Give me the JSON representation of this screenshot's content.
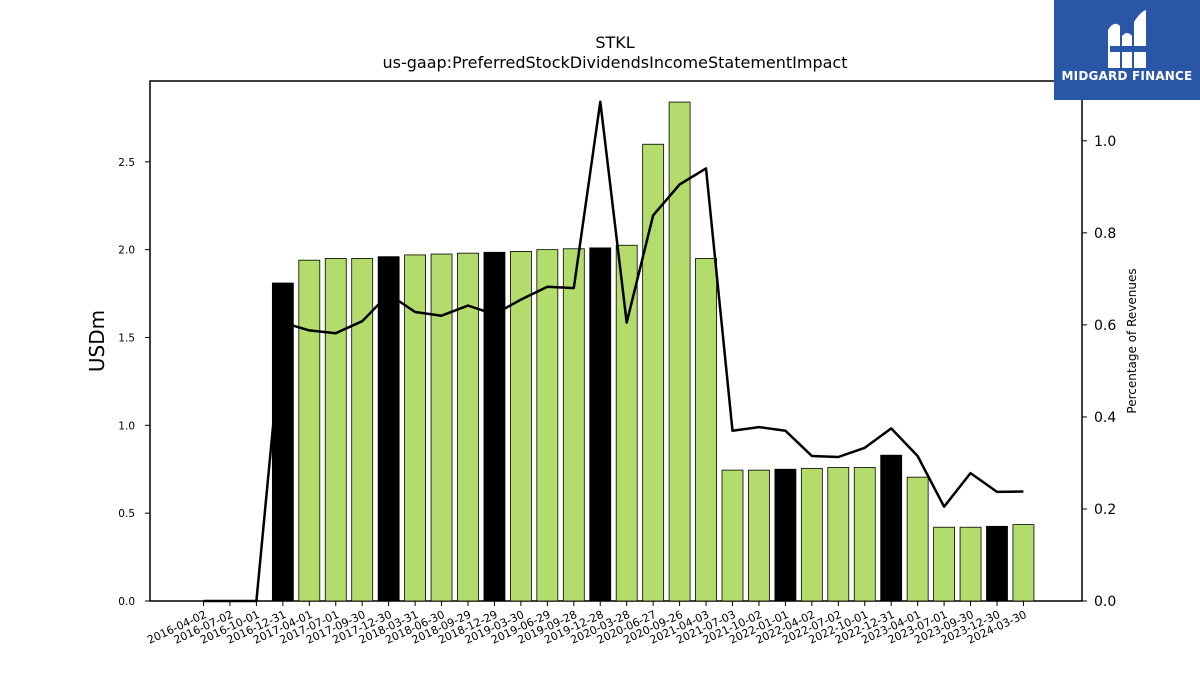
{
  "logo": {
    "text": "MIDGARD FINANCE"
  },
  "chart_data": {
    "type": "bar",
    "title": "STKL",
    "subtitle": "us-gaap:PreferredStockDividendsIncomeStatementImpact",
    "ylabel": "USDm",
    "y2label": "Percentage of Revenues",
    "ylim": [
      0,
      2.96
    ],
    "y2lim": [
      0,
      1.13
    ],
    "yticks": [
      "0.0",
      "0.5",
      "1.0",
      "1.5",
      "2.0",
      "2.5"
    ],
    "y2ticks": [
      "0.0",
      "0.2",
      "0.4",
      "0.6",
      "0.8",
      "1.0"
    ],
    "categories": [
      "2016-04-02",
      "2016-07-02",
      "2016-10-01",
      "2016-12-31",
      "2017-04-01",
      "2017-07-01",
      "2017-09-30",
      "2017-12-30",
      "2018-03-31",
      "2018-06-30",
      "2018-09-29",
      "2018-12-29",
      "2019-03-30",
      "2019-06-29",
      "2019-09-28",
      "2019-12-28",
      "2020-03-28",
      "2020-06-27",
      "2020-09-26",
      "2021-04-03",
      "2021-07-03",
      "2021-10-02",
      "2022-01-01",
      "2022-04-02",
      "2022-07-02",
      "2022-10-01",
      "2022-12-31",
      "2023-04-01",
      "2023-07-01",
      "2023-09-30",
      "2023-12-30",
      "2024-03-30"
    ],
    "series": [
      {
        "type": "bar",
        "values": [
          0,
          0,
          0,
          1.81,
          1.94,
          1.95,
          1.95,
          1.96,
          1.97,
          1.975,
          1.98,
          1.985,
          1.99,
          2.0,
          2.005,
          2.01,
          2.025,
          2.6,
          2.84,
          1.95,
          0.745,
          0.745,
          0.75,
          0.755,
          0.76,
          0.76,
          0.83,
          0.705,
          0.42,
          0.42,
          0.425,
          0.435
        ],
        "highlight": [
          false,
          false,
          false,
          true,
          false,
          false,
          false,
          true,
          false,
          false,
          false,
          true,
          false,
          false,
          false,
          true,
          false,
          false,
          false,
          false,
          false,
          false,
          true,
          false,
          false,
          false,
          true,
          false,
          false,
          false,
          true,
          false
        ],
        "colors": {
          "normal": "#b3dc6c",
          "highlight": "#000000"
        }
      },
      {
        "type": "line",
        "axis": "right",
        "values": [
          0,
          0,
          0,
          0.605,
          0.588,
          0.582,
          0.608,
          0.667,
          0.628,
          0.62,
          0.642,
          0.623,
          0.655,
          0.683,
          0.68,
          1.085,
          0.605,
          0.838,
          0.905,
          0.94,
          0.37,
          0.378,
          0.37,
          0.315,
          0.313,
          0.333,
          0.375,
          0.315,
          0.205,
          0.278,
          0.237,
          0.238
        ],
        "color": "#000000"
      }
    ]
  }
}
